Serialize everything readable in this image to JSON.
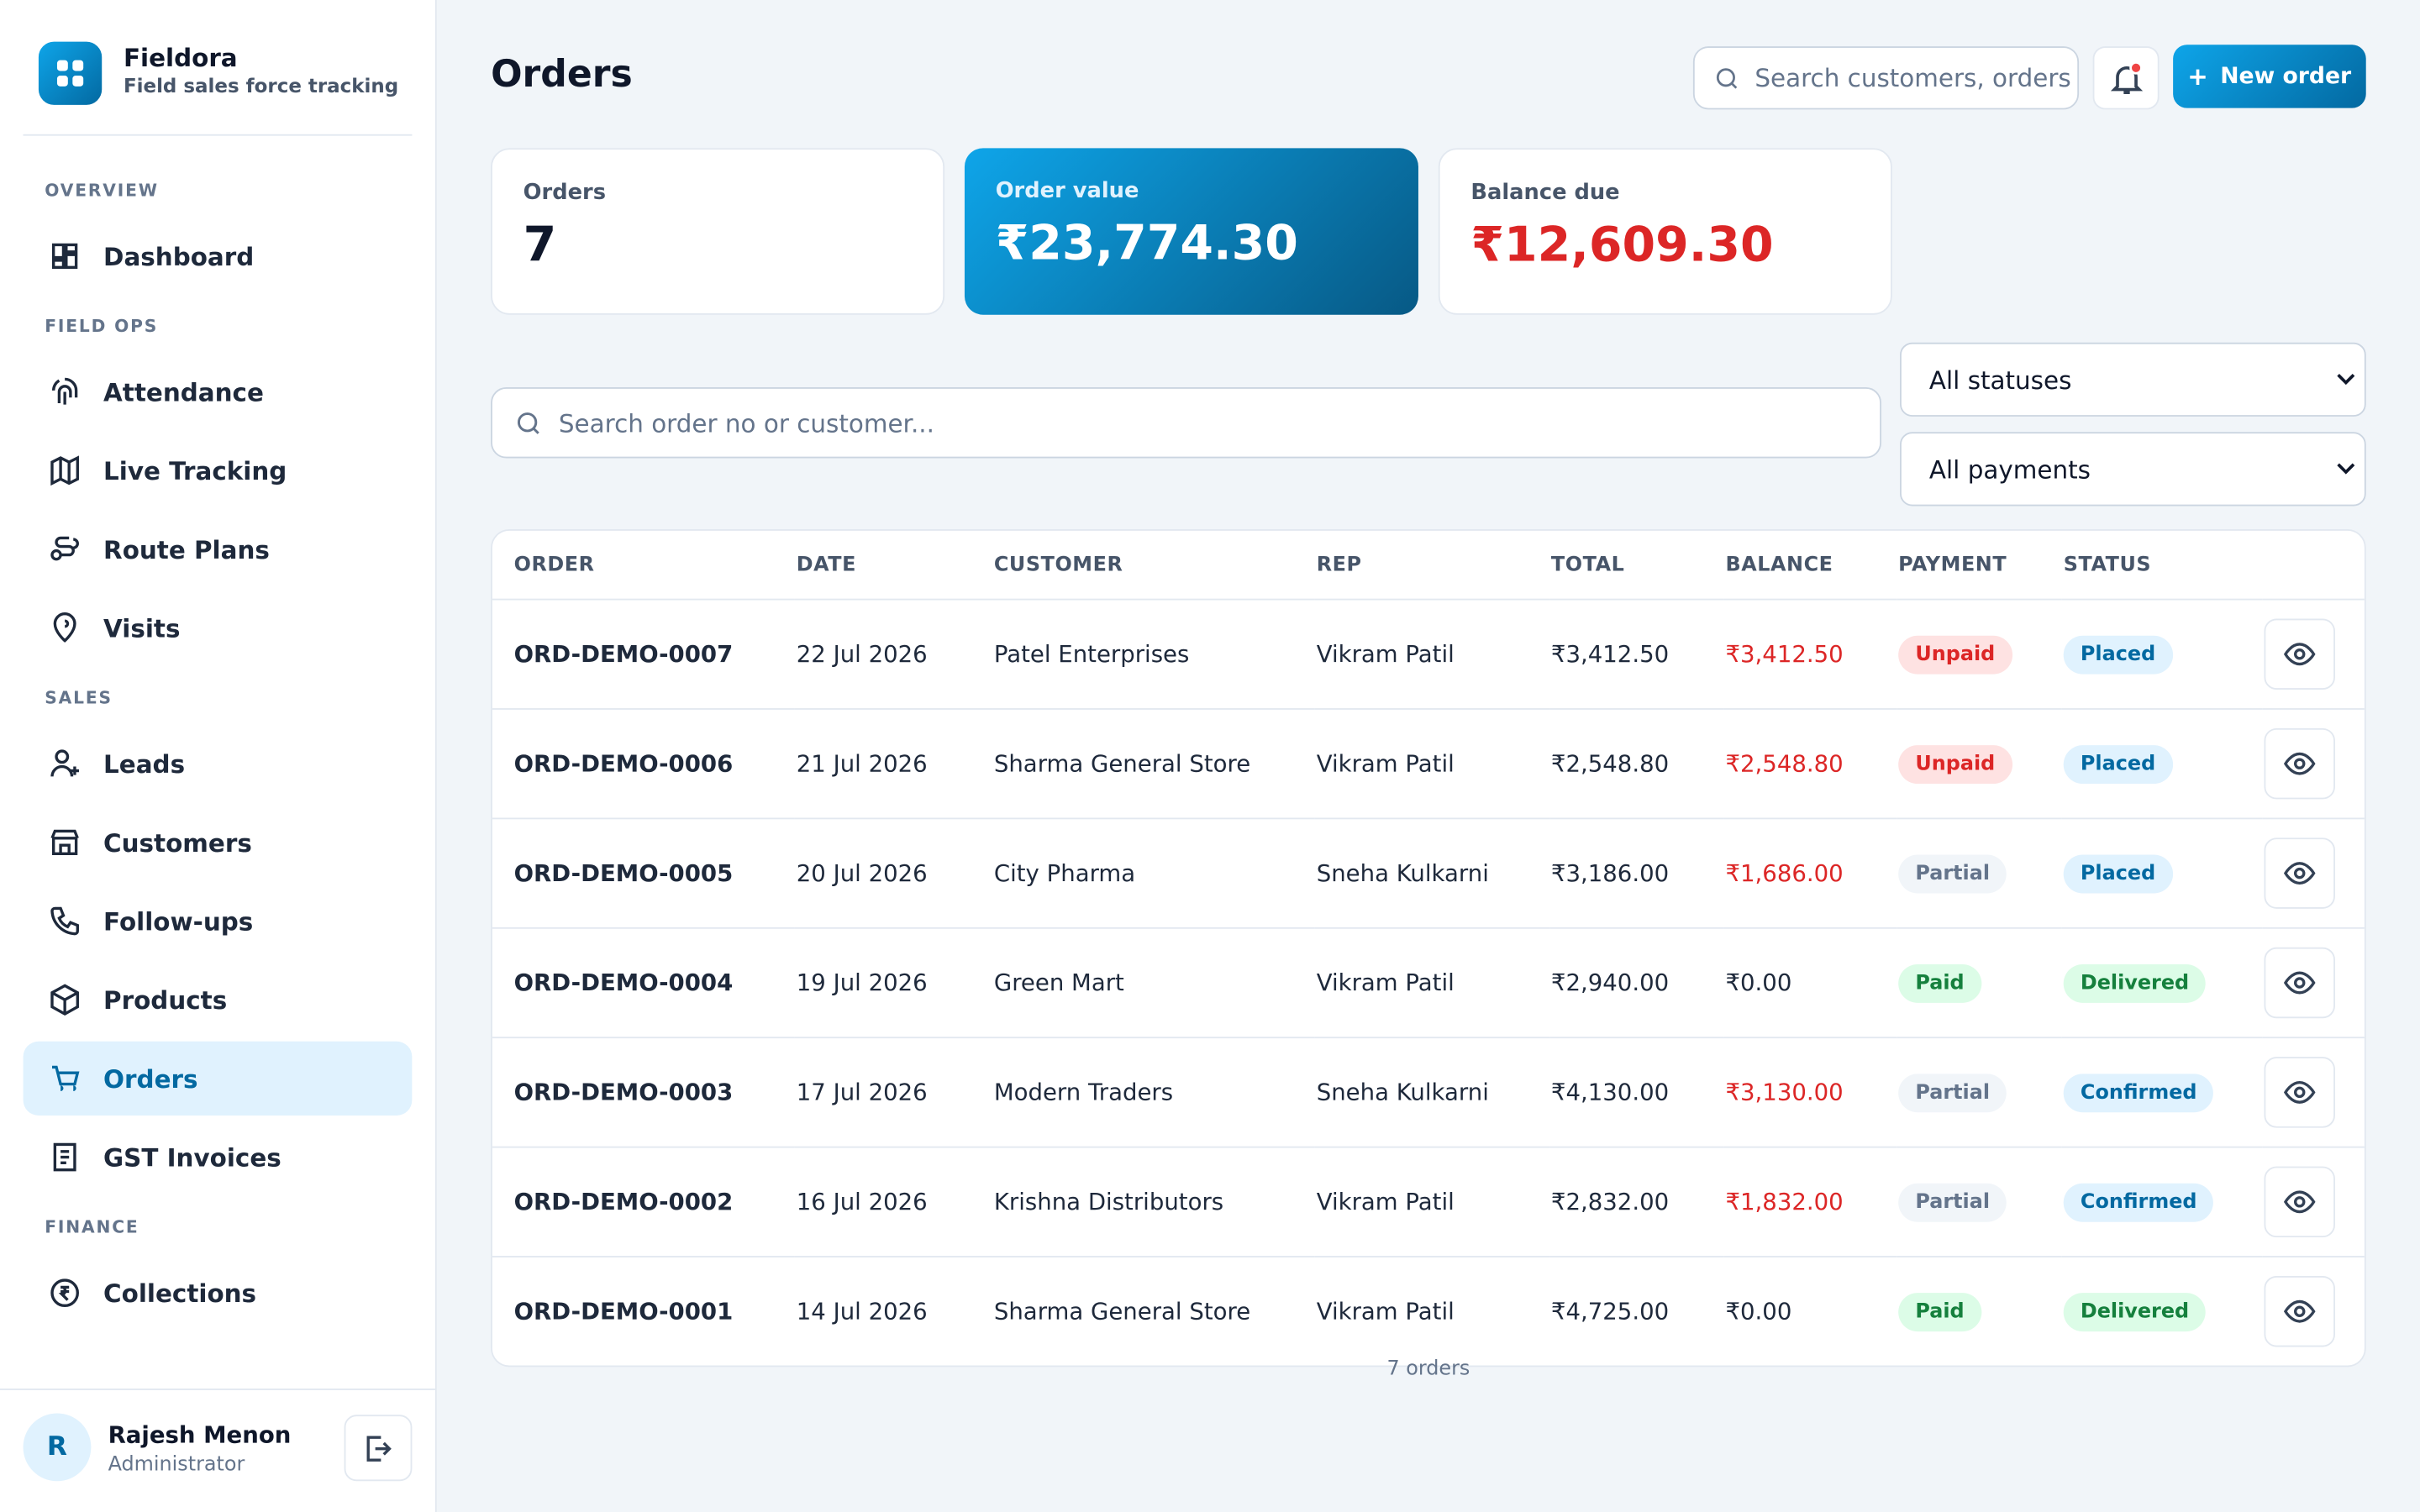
{
  "sidebar": {
    "brand": {
      "name": "Fieldora",
      "tagline": "Field sales force tracking"
    },
    "sections": [
      {
        "title": "OVERVIEW",
        "items": [
          {
            "label": "Dashboard"
          }
        ]
      },
      {
        "title": "FIELD OPS",
        "items": [
          {
            "label": "Attendance"
          },
          {
            "label": "Live Tracking"
          },
          {
            "label": "Route Plans"
          },
          {
            "label": "Visits"
          }
        ]
      },
      {
        "title": "SALES",
        "items": [
          {
            "label": "Leads"
          },
          {
            "label": "Customers"
          },
          {
            "label": "Follow-ups"
          },
          {
            "label": "Products"
          },
          {
            "label": "Orders",
            "active": true
          },
          {
            "label": "GST Invoices"
          }
        ]
      },
      {
        "title": "FINANCE",
        "items": [
          {
            "label": "Collections"
          }
        ]
      }
    ],
    "user": {
      "initial": "R",
      "name": "Rajesh Menon",
      "role": "Administrator"
    }
  },
  "header": {
    "title": "Orders",
    "search_placeholder": "Search customers, orders",
    "new_button": "New order"
  },
  "stats": [
    {
      "label": "Orders",
      "value": "7",
      "tone": "plain"
    },
    {
      "label": "Order value",
      "value": "₹23,774.30",
      "tone": "highlight"
    },
    {
      "label": "Balance due",
      "value": "₹12,609.30",
      "tone": "danger"
    }
  ],
  "filters": {
    "search_placeholder": "Search order no or customer...",
    "status": "All statuses",
    "payment": "All payments"
  },
  "table": {
    "columns": [
      "ORDER",
      "DATE",
      "CUSTOMER",
      "REP",
      "TOTAL",
      "BALANCE",
      "PAYMENT",
      "STATUS"
    ],
    "rows": [
      {
        "order": "ORD-DEMO-0007",
        "date": "22 Jul 2026",
        "customer": "Patel Enterprises",
        "rep": "Vikram Patil",
        "total": "₹3,412.50",
        "balance": "₹3,412.50",
        "balance_color": "#dc2626",
        "payment": {
          "label": "Unpaid",
          "tone": "red"
        },
        "status": {
          "label": "Placed",
          "tone": "blue"
        }
      },
      {
        "order": "ORD-DEMO-0006",
        "date": "21 Jul 2026",
        "customer": "Sharma General Store",
        "rep": "Vikram Patil",
        "total": "₹2,548.80",
        "balance": "₹2,548.80",
        "balance_color": "#dc2626",
        "payment": {
          "label": "Unpaid",
          "tone": "red"
        },
        "status": {
          "label": "Placed",
          "tone": "blue"
        }
      },
      {
        "order": "ORD-DEMO-0005",
        "date": "20 Jul 2026",
        "customer": "City Pharma",
        "rep": "Sneha Kulkarni",
        "total": "₹3,186.00",
        "balance": "₹1,686.00",
        "balance_color": "#dc2626",
        "payment": {
          "label": "Partial",
          "tone": "gray"
        },
        "status": {
          "label": "Placed",
          "tone": "blue"
        }
      },
      {
        "order": "ORD-DEMO-0004",
        "date": "19 Jul 2026",
        "customer": "Green Mart",
        "rep": "Vikram Patil",
        "total": "₹2,940.00",
        "balance": "₹0.00",
        "balance_color": "#1e293b",
        "payment": {
          "label": "Paid",
          "tone": "green"
        },
        "status": {
          "label": "Delivered",
          "tone": "green"
        }
      },
      {
        "order": "ORD-DEMO-0003",
        "date": "17 Jul 2026",
        "customer": "Modern Traders",
        "rep": "Sneha Kulkarni",
        "total": "₹4,130.00",
        "balance": "₹3,130.00",
        "balance_color": "#dc2626",
        "payment": {
          "label": "Partial",
          "tone": "gray"
        },
        "status": {
          "label": "Confirmed",
          "tone": "blue"
        }
      },
      {
        "order": "ORD-DEMO-0002",
        "date": "16 Jul 2026",
        "customer": "Krishna Distributors",
        "rep": "Vikram Patil",
        "total": "₹2,832.00",
        "balance": "₹1,832.00",
        "balance_color": "#dc2626",
        "payment": {
          "label": "Partial",
          "tone": "gray"
        },
        "status": {
          "label": "Confirmed",
          "tone": "blue"
        }
      },
      {
        "order": "ORD-DEMO-0001",
        "date": "14 Jul 2026",
        "customer": "Sharma General Store",
        "rep": "Vikram Patil",
        "total": "₹4,725.00",
        "balance": "₹0.00",
        "balance_color": "#1e293b",
        "payment": {
          "label": "Paid",
          "tone": "green"
        },
        "status": {
          "label": "Delivered",
          "tone": "green"
        }
      }
    ]
  },
  "footer": "7 orders"
}
